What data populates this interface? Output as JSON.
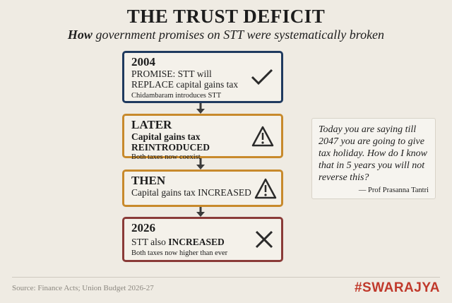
{
  "header": {
    "title": "THE TRUST DEFICIT",
    "subtitle_emphasis": "How",
    "subtitle": "government promises on STT were systematically broken"
  },
  "nodes": [
    {
      "label": "2004",
      "text": "PROMISE: STT will REPLACE capital gains tax",
      "note": "Chidambaram introduces STT"
    },
    {
      "label": "LATER",
      "text": "Capital gains tax",
      "text_emphasis": "REINTRODUCED",
      "note": "Both taxes now coexist"
    },
    {
      "label": "THEN",
      "text": "Capital gains tax INCREASED"
    },
    {
      "label": "2026",
      "text": "STT also",
      "text_emphasis": "INCREASED",
      "note": "Both taxes now higher than ever"
    }
  ],
  "quote": {
    "text": "Today you are saying till 2047 you are going to give tax holiday. How do I know that in 5 years you will not reverse this?",
    "attribution": "— Prof Prasanna Tantri"
  },
  "footer": {
    "source": "Source: Finance Acts; Union Budget 2026-27",
    "brand": "#SWARAJYA"
  }
}
